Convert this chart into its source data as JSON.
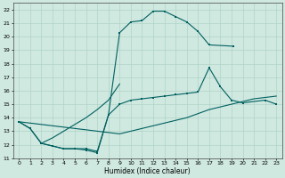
{
  "xlabel": "Humidex (Indice chaleur)",
  "xlim": [
    -0.5,
    23.5
  ],
  "ylim": [
    11,
    22.5
  ],
  "xticks": [
    0,
    1,
    2,
    3,
    4,
    5,
    6,
    7,
    8,
    9,
    10,
    11,
    12,
    13,
    14,
    15,
    16,
    17,
    18,
    19,
    20,
    21,
    22,
    23
  ],
  "yticks": [
    11,
    12,
    13,
    14,
    15,
    16,
    17,
    18,
    19,
    20,
    21,
    22
  ],
  "bg_color": "#cfe8e0",
  "grid_color": "#b0d4c8",
  "line_color": "#006060",
  "line1_x": [
    0,
    1,
    2,
    3,
    4,
    5,
    6,
    7,
    8,
    9,
    10,
    11,
    12,
    13,
    14,
    15,
    16,
    17,
    19.2
  ],
  "line1_y": [
    13.7,
    13.2,
    12.1,
    11.9,
    11.7,
    11.7,
    11.6,
    11.4,
    14.2,
    20.3,
    21.1,
    21.2,
    21.9,
    21.9,
    21.5,
    21.1,
    20.4,
    19.4,
    19.3
  ],
  "line2_x": [
    0,
    1,
    2,
    3,
    4,
    5,
    6,
    7,
    8,
    9,
    10,
    11,
    12,
    13,
    14,
    15,
    16,
    17,
    18,
    19,
    20,
    22,
    23
  ],
  "line2_y": [
    13.7,
    13.2,
    12.1,
    11.9,
    11.7,
    11.7,
    11.7,
    11.5,
    14.2,
    15.0,
    15.3,
    15.4,
    15.5,
    15.6,
    15.7,
    15.8,
    15.9,
    17.7,
    16.3,
    15.3,
    15.1,
    15.3,
    15.0
  ],
  "line3_x": [
    0,
    9,
    10,
    11,
    12,
    13,
    14,
    15,
    16,
    17,
    18,
    19,
    20,
    21,
    22,
    23
  ],
  "line3_y": [
    13.7,
    12.8,
    13.0,
    13.2,
    13.4,
    13.6,
    13.8,
    14.0,
    14.3,
    14.6,
    14.8,
    15.0,
    15.2,
    15.4,
    15.5,
    15.6
  ],
  "line4_x": [
    2,
    3,
    4,
    5,
    6,
    7,
    8,
    9
  ],
  "line4_y": [
    12.1,
    12.5,
    13.0,
    13.5,
    14.0,
    14.6,
    15.3,
    16.5
  ]
}
